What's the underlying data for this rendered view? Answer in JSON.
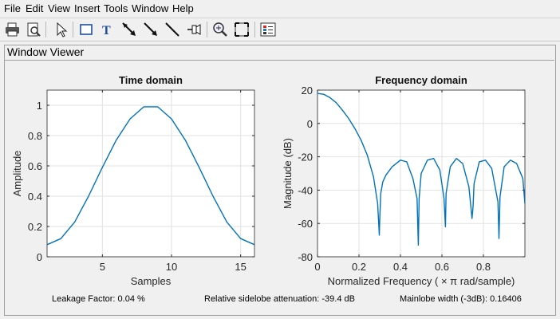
{
  "menu": [
    "File",
    "Edit",
    "View",
    "Insert",
    "Tools",
    "Window",
    "Help"
  ],
  "toolbar": {
    "buttons": [
      "print-icon",
      "print-preview-icon",
      "select-arrow-icon",
      "rectangle-icon",
      "text-icon",
      "arrow-icon",
      "double-arrow-icon",
      "line-icon",
      "pin-icon",
      "zoom-in-icon",
      "fit-icon",
      "legend-icon"
    ]
  },
  "panel": {
    "title": "Window Viewer"
  },
  "chart_data": [
    {
      "type": "line",
      "title": "Time domain",
      "xlabel": "Samples",
      "ylabel": "Amplitude",
      "xlim": [
        1,
        16
      ],
      "ylim": [
        0,
        1.1
      ],
      "xticks": [
        5,
        10,
        15
      ],
      "yticks": [
        0,
        0.2,
        0.4,
        0.6,
        0.8,
        1
      ],
      "grid": true,
      "color": "#0072bd",
      "x": [
        1,
        2,
        3,
        4,
        5,
        6,
        7,
        8,
        9,
        10,
        11,
        12,
        13,
        14,
        15,
        16
      ],
      "y": [
        0.08,
        0.12,
        0.23,
        0.4,
        0.59,
        0.77,
        0.91,
        0.99,
        0.99,
        0.91,
        0.77,
        0.59,
        0.4,
        0.23,
        0.12,
        0.08
      ]
    },
    {
      "type": "line",
      "title": "Frequency domain",
      "xlabel": "Normalized Frequency  ( × π  rad/sample)",
      "ylabel": "Magnitude (dB)",
      "xlim": [
        0,
        1
      ],
      "ylim": [
        -80,
        20
      ],
      "xticks": [
        0,
        0.2,
        0.4,
        0.6,
        0.8
      ],
      "yticks": [
        20,
        0,
        -20,
        -40,
        -60,
        -80
      ],
      "grid": true,
      "color": "#0072bd",
      "x": [
        0,
        0.03,
        0.06,
        0.09,
        0.12,
        0.15,
        0.18,
        0.21,
        0.24,
        0.27,
        0.29,
        0.298,
        0.3,
        0.305,
        0.315,
        0.33,
        0.36,
        0.4,
        0.43,
        0.46,
        0.48,
        0.486,
        0.49,
        0.5,
        0.53,
        0.56,
        0.59,
        0.61,
        0.617,
        0.62,
        0.64,
        0.67,
        0.7,
        0.73,
        0.745,
        0.75,
        0.755,
        0.78,
        0.81,
        0.84,
        0.87,
        0.875,
        0.88,
        0.9,
        0.93,
        0.96,
        0.99,
        1.0
      ],
      "y": [
        18,
        17.5,
        15.5,
        12.5,
        8,
        3,
        -3,
        -10,
        -19,
        -32,
        -48,
        -67,
        -58,
        -42,
        -35,
        -31,
        -26,
        -22,
        -23,
        -33,
        -45,
        -73,
        -45,
        -30,
        -22,
        -21,
        -28,
        -45,
        -62,
        -42,
        -26,
        -21,
        -24,
        -38,
        -57,
        -50,
        -36,
        -23,
        -22,
        -27,
        -47,
        -69,
        -44,
        -26,
        -22,
        -24,
        -33,
        -48
      ]
    }
  ],
  "status": {
    "leakage": "Leakage Factor: 0.04 %",
    "sidelobe": "Relative sidelobe attenuation: -39.4 dB",
    "mainlobe": "Mainlobe width (-3dB): 0.16406"
  }
}
